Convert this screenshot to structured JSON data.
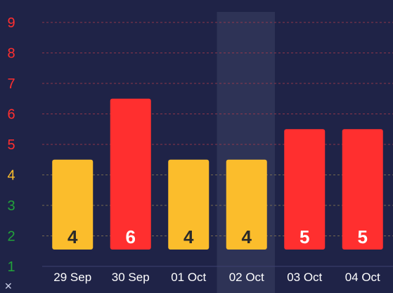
{
  "chart_data": {
    "type": "bar",
    "categories": [
      "29 Sep",
      "30 Sep",
      "01 Oct",
      "02 Oct",
      "03 Oct",
      "04 Oct"
    ],
    "values": [
      4,
      6,
      4,
      4,
      5,
      5
    ],
    "bar_colors": [
      "#fbbd2c",
      "#ff2f2f",
      "#fbbd2c",
      "#fbbd2c",
      "#ff2f2f",
      "#ff2f2f"
    ],
    "bar_label_colors": [
      "#2a2a2a",
      "#ffffff",
      "#2a2a2a",
      "#2a2a2a",
      "#ffffff",
      "#ffffff"
    ],
    "highlighted_category": "02 Oct",
    "y_ticks": [
      "1",
      "2",
      "3",
      "4",
      "5",
      "6",
      "7",
      "8",
      "9"
    ],
    "y_tick_colors": [
      "#22a33a",
      "#22a33a",
      "#22a33a",
      "#fbbd2c",
      "#ff2f2f",
      "#ff2f2f",
      "#ff2f2f",
      "#ff2f2f",
      "#ff2f2f"
    ],
    "ylim": [
      1,
      9
    ],
    "grid": true,
    "title": "",
    "xlabel": "",
    "ylabel": ""
  },
  "icons": {
    "corner": "close-icon"
  },
  "corner_glyph": "✕",
  "colors": {
    "background": "#1f2347",
    "highlight_band": "#2e3356",
    "grid_red": "#a83a4a",
    "grid_yellow": "#8a7a50"
  }
}
